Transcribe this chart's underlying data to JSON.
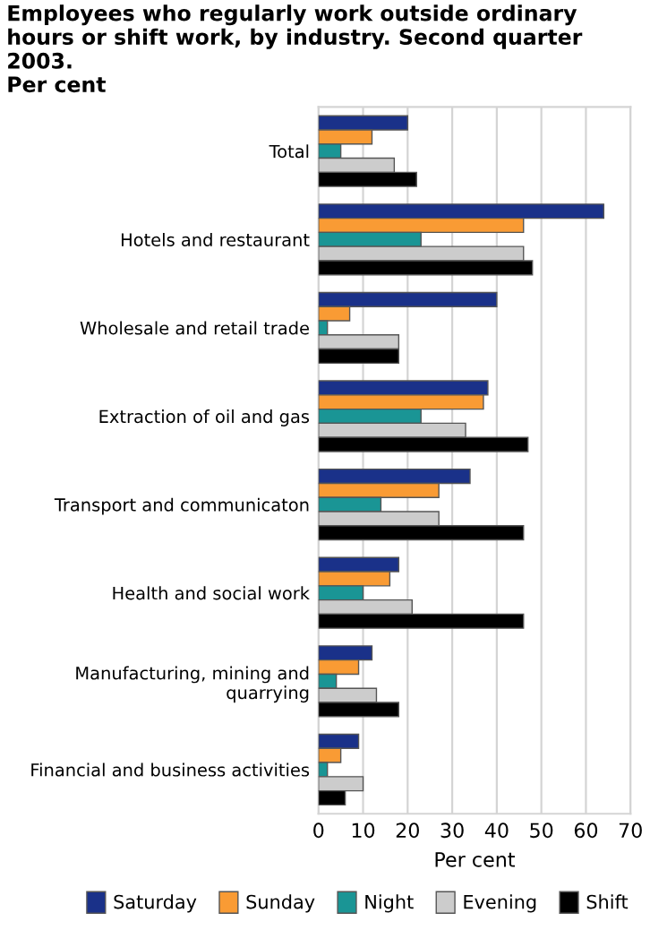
{
  "chart_data": {
    "type": "bar",
    "orientation": "horizontal",
    "title": "Employees who regularly work outside ordinary hours or shift work, by industry. Second quarter 2003.\nPer cent",
    "xlabel": "Per cent",
    "categories": [
      "Total",
      "Hotels and restaurant",
      "Wholesale and retail trade",
      "Extraction of oil and gas",
      "Transport and communicaton",
      "Health and social work",
      "Manufacturing, mining and\nquarrying",
      "Financial and business activities"
    ],
    "series": [
      {
        "name": "Saturday",
        "color": "#1a3189",
        "values": [
          20,
          64,
          40,
          38,
          34,
          18,
          12,
          9
        ]
      },
      {
        "name": "Sunday",
        "color": "#f99b34",
        "values": [
          12,
          46,
          7,
          37,
          27,
          16,
          9,
          5
        ]
      },
      {
        "name": "Night",
        "color": "#1a9595",
        "values": [
          5,
          23,
          2,
          23,
          14,
          10,
          4,
          2
        ]
      },
      {
        "name": "Evening",
        "color": "#cccccc",
        "values": [
          17,
          46,
          18,
          33,
          27,
          21,
          13,
          10
        ]
      },
      {
        "name": "Shift",
        "color": "#000000",
        "values": [
          22,
          48,
          18,
          47,
          46,
          46,
          18,
          6
        ]
      }
    ],
    "xlim": [
      0,
      70
    ],
    "xticks": [
      0,
      10,
      20,
      30,
      40,
      50,
      60,
      70
    ],
    "grid": "x",
    "legend": "bottom"
  }
}
